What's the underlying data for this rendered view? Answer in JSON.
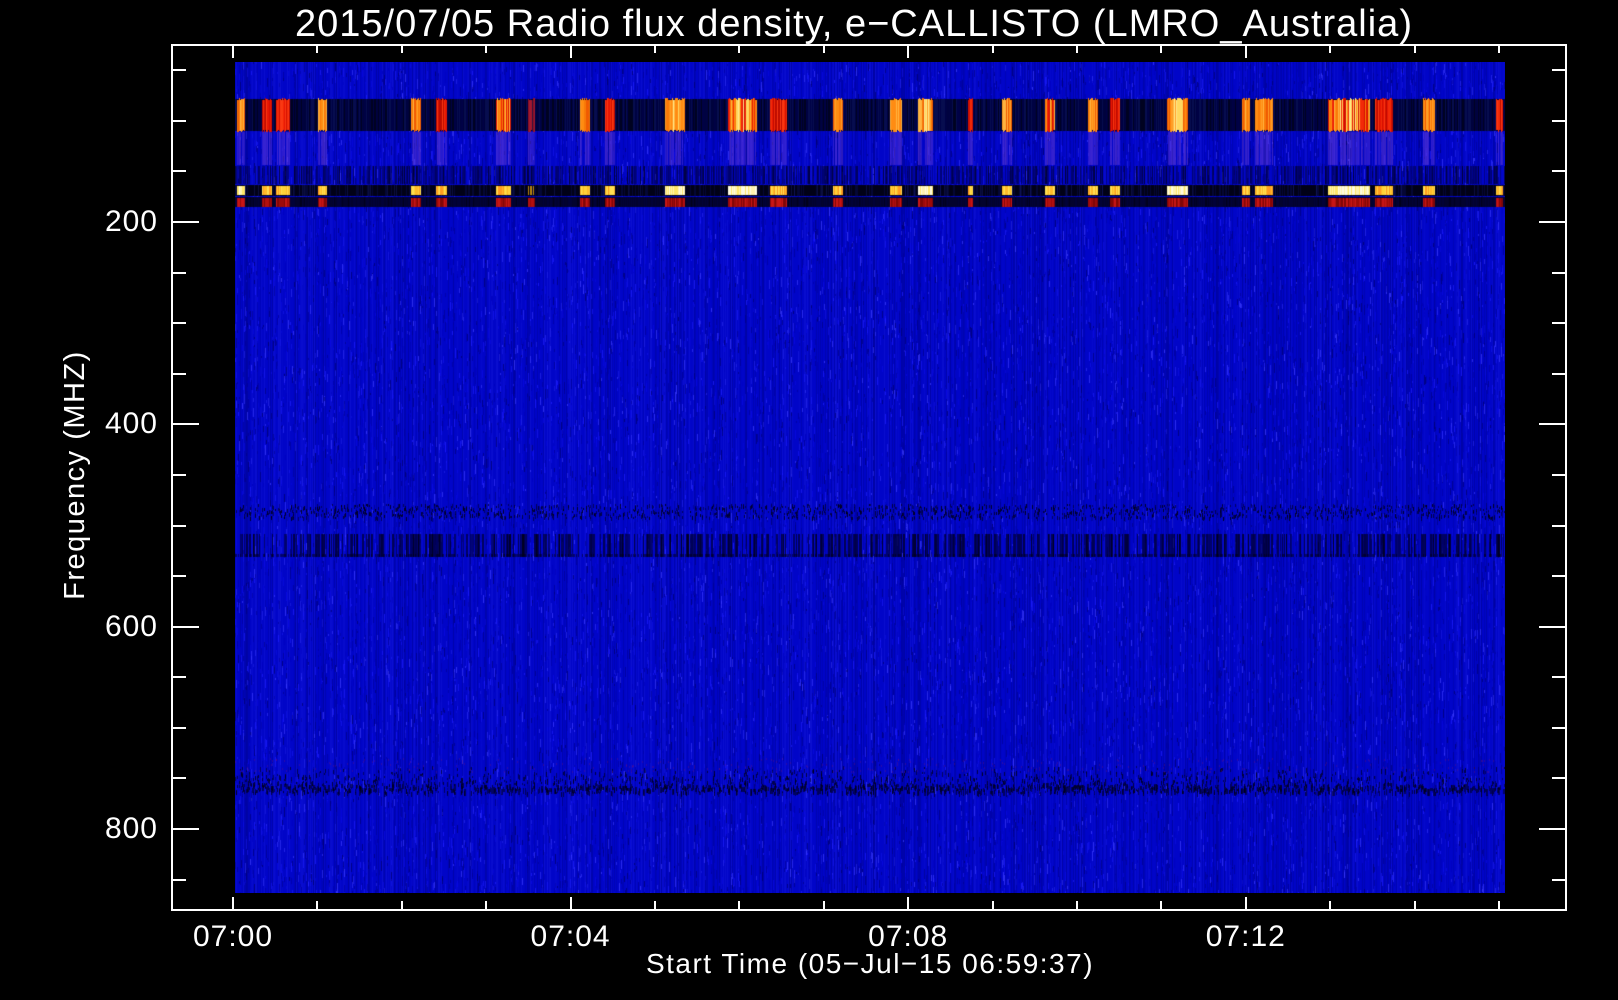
{
  "chart_data": {
    "type": "heatmap",
    "subtype": "radio-spectrogram",
    "title": "2015/07/05  Radio flux density, e−CALLISTO (LMRO_Australia)",
    "xlabel": "Start Time (05−Jul−15 06:59:37)",
    "ylabel": "Frequency (MHZ)",
    "x_unit": "minutes after 07:00",
    "xlim_minutes": [
      0.0,
      15.05
    ],
    "ylim_mhz": [
      40,
      862
    ],
    "y_axis_direction": "frequency increases downward",
    "x_axis": {
      "major_ticks": [
        {
          "t": 0,
          "label": "07:00"
        },
        {
          "t": 4,
          "label": "07:04"
        },
        {
          "t": 8,
          "label": "07:08"
        },
        {
          "t": 12,
          "label": "07:12"
        }
      ],
      "minor_ticks_minutes": [
        1,
        2,
        3,
        5,
        6,
        7,
        9,
        10,
        11,
        13,
        14,
        15
      ]
    },
    "y_axis": {
      "major_ticks": [
        {
          "f": 200,
          "label": "200"
        },
        {
          "f": 400,
          "label": "400"
        },
        {
          "f": 600,
          "label": "600"
        },
        {
          "f": 800,
          "label": "800"
        }
      ],
      "minor_ticks_mhz": [
        50,
        100,
        150,
        250,
        300,
        350,
        450,
        500,
        550,
        650,
        700,
        750,
        850
      ]
    },
    "colors": {
      "background": "#000000",
      "axes_and_text": "#ffffff",
      "base_blue": "#0105c8",
      "rfi_band_bg": "#01042e",
      "dark_channel_bg": "#010117",
      "red_channel_bg": "#03032e",
      "burst_orange": "#ff8c12",
      "burst_red": "#e81604",
      "burst_yellow_core": "#ffe88a",
      "echo_purple": "#693cd7",
      "channel_dash_bright": "#fffbe2",
      "channel_dash_red": "#b21010"
    },
    "bands": [
      {
        "name": "vhf-rfi-burst-band",
        "f0": 78,
        "f1": 110,
        "style": "dark navy with bright bursts"
      },
      {
        "name": "vhf-echo-band",
        "f0": 111,
        "f1": 144,
        "style": "purple echoes of bursts"
      },
      {
        "name": "striated-band",
        "f0": 145,
        "f1": 162,
        "style": "darker blue striations"
      },
      {
        "name": "dark-channel",
        "f0": 163,
        "f1": 174,
        "style": "near-black with bright yellow dashes"
      },
      {
        "name": "red-channel",
        "f0": 175,
        "f1": 185,
        "style": "dark with red dashes"
      },
      {
        "name": "mid-interference-a",
        "f0": 479,
        "f1": 493,
        "style": "speckled dark dots"
      },
      {
        "name": "mid-interference-b",
        "f0": 508,
        "f1": 531,
        "style": "dark vertical bars"
      },
      {
        "name": "low-interference",
        "f0": 738,
        "f1": 764,
        "style": "dark speckle band"
      }
    ],
    "bursts": [
      {
        "t0": 0.05,
        "t1": 0.14,
        "i": "orange",
        "wide": true
      },
      {
        "t0": 0.34,
        "t1": 0.46,
        "i": "red"
      },
      {
        "t0": 0.51,
        "t1": 0.68,
        "i": "red"
      },
      {
        "t0": 1.01,
        "t1": 1.11,
        "i": "orange"
      },
      {
        "t0": 2.11,
        "t1": 2.23,
        "i": "orange"
      },
      {
        "t0": 2.41,
        "t1": 2.54,
        "i": "red"
      },
      {
        "t0": 3.12,
        "t1": 3.29,
        "i": "orangered"
      },
      {
        "t0": 3.5,
        "t1": 3.58,
        "i": "dimred"
      },
      {
        "t0": 4.11,
        "t1": 4.23,
        "i": "orange"
      },
      {
        "t0": 4.41,
        "t1": 4.53,
        "i": "red"
      },
      {
        "t0": 5.12,
        "t1": 5.36,
        "i": "orange",
        "wide": true
      },
      {
        "t0": 5.87,
        "t1": 6.21,
        "i": "orangered",
        "wide": true
      },
      {
        "t0": 6.36,
        "t1": 6.56,
        "i": "red"
      },
      {
        "t0": 7.11,
        "t1": 7.23,
        "i": "orange"
      },
      {
        "t0": 7.78,
        "t1": 7.93,
        "i": "orange"
      },
      {
        "t0": 8.12,
        "t1": 8.29,
        "i": "orange",
        "wide": true
      },
      {
        "t0": 8.71,
        "t1": 8.77,
        "i": "red"
      },
      {
        "t0": 9.11,
        "t1": 9.23,
        "i": "orange"
      },
      {
        "t0": 9.62,
        "t1": 9.74,
        "i": "orangered"
      },
      {
        "t0": 10.13,
        "t1": 10.25,
        "i": "orange"
      },
      {
        "t0": 10.39,
        "t1": 10.51,
        "i": "red"
      },
      {
        "t0": 11.07,
        "t1": 11.32,
        "i": "orange",
        "wide": true
      },
      {
        "t0": 11.96,
        "t1": 12.05,
        "i": "orange"
      },
      {
        "t0": 12.11,
        "t1": 12.32,
        "i": "orange"
      },
      {
        "t0": 12.97,
        "t1": 13.47,
        "i": "orangered",
        "wide": true
      },
      {
        "t0": 13.53,
        "t1": 13.74,
        "i": "red"
      },
      {
        "t0": 14.1,
        "t1": 14.24,
        "i": "orange"
      },
      {
        "t0": 14.97,
        "t1": 15.05,
        "i": "red"
      }
    ]
  }
}
